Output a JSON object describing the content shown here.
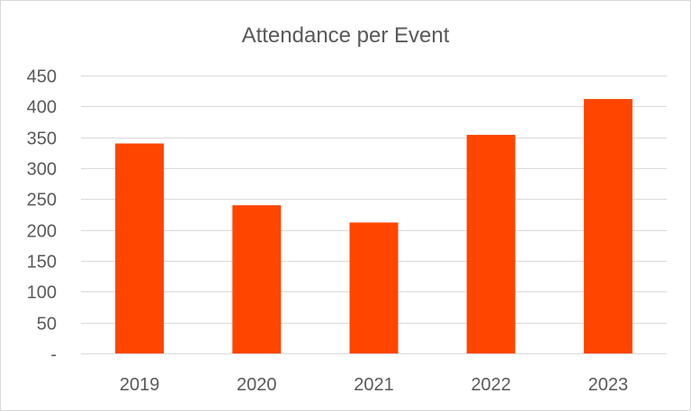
{
  "chart_data": {
    "type": "bar",
    "title": "Attendance per Event",
    "categories": [
      "2019",
      "2020",
      "2021",
      "2022",
      "2023"
    ],
    "values": [
      340,
      240,
      212,
      354,
      412
    ],
    "ylim": [
      0,
      450
    ],
    "yticks": [
      0,
      50,
      100,
      150,
      200,
      250,
      300,
      350,
      400,
      450
    ],
    "ytick_labels": [
      "-",
      "50",
      "100",
      "150",
      "200",
      "250",
      "300",
      "350",
      "400",
      "450"
    ],
    "grid": true,
    "legend": "none",
    "bar_color": "#ff4500",
    "grid_color": "#d9d9d9",
    "text_color": "#595959"
  }
}
